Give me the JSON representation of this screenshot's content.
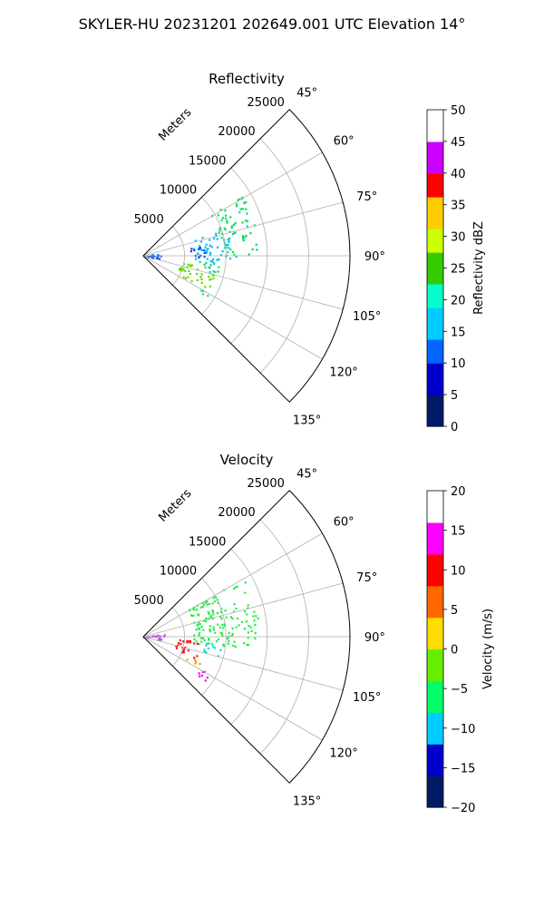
{
  "figure": {
    "title": "SKYLER-HU  20231201  202649.001 UTC Elevation 14°"
  },
  "chart_data": [
    {
      "type": "polar-sector",
      "title": "Reflectivity",
      "radial_label": "Meters",
      "radial_ticks": [
        "5000",
        "10000",
        "15000",
        "20000",
        "25000"
      ],
      "radial_values": [
        5000,
        10000,
        15000,
        20000,
        25000
      ],
      "r_max": 25000,
      "azimuth_ticks": [
        "45°",
        "60°",
        "75°",
        "90°",
        "105°",
        "120°",
        "135°"
      ],
      "azimuth_values": [
        45,
        60,
        75,
        90,
        105,
        120,
        135
      ],
      "azimuth_range": [
        45,
        135
      ],
      "grid": true,
      "colorbar": {
        "label": "Reflectivity dBZ",
        "ticks": [
          "0",
          "5",
          "10",
          "15",
          "20",
          "25",
          "30",
          "35",
          "40",
          "45",
          "50"
        ],
        "range": [
          0,
          50
        ],
        "colors": [
          "#001a66",
          "#0000cc",
          "#0066ff",
          "#00ccff",
          "#00ffcc",
          "#33cc00",
          "#ccff00",
          "#ffcc00",
          "#ff0000",
          "#cc00ff",
          "#ffffff"
        ]
      },
      "echo_regions": [
        {
          "az": [
            58,
            90
          ],
          "r": [
            9500,
            14000
          ],
          "value": 15,
          "color": "#00e060"
        },
        {
          "az": [
            72,
            96
          ],
          "r": [
            6000,
            10500
          ],
          "value": 10,
          "color": "#00b8ff"
        },
        {
          "az": [
            80,
            92
          ],
          "r": [
            5500,
            7500
          ],
          "value": 5,
          "color": "#0040ff"
        },
        {
          "az": [
            95,
            104
          ],
          "r": [
            6500,
            9500
          ],
          "value": 16,
          "color": "#00dd88"
        },
        {
          "az": [
            100,
            118
          ],
          "r": [
            4500,
            9000
          ],
          "value": 20,
          "color": "#66dd00"
        },
        {
          "az": [
            120,
            126
          ],
          "r": [
            7500,
            9500
          ],
          "value": 14,
          "color": "#00ee66"
        },
        {
          "az": [
            80,
            100
          ],
          "r": [
            0,
            2500
          ],
          "value": 5,
          "color": "#0050ff"
        }
      ]
    },
    {
      "type": "polar-sector",
      "title": "Velocity",
      "radial_label": "Meters",
      "radial_ticks": [
        "5000",
        "10000",
        "15000",
        "20000",
        "25000"
      ],
      "radial_values": [
        5000,
        10000,
        15000,
        20000,
        25000
      ],
      "r_max": 25000,
      "azimuth_ticks": [
        "45°",
        "60°",
        "75°",
        "90°",
        "105°",
        "120°",
        "135°"
      ],
      "azimuth_values": [
        45,
        60,
        75,
        90,
        105,
        120,
        135
      ],
      "azimuth_range": [
        45,
        135
      ],
      "grid": true,
      "colorbar": {
        "label": "Velocity (m/s)",
        "ticks": [
          "−20",
          "−15",
          "−10",
          "−5",
          "0",
          "5",
          "10",
          "15",
          "20"
        ],
        "range": [
          -20,
          20
        ],
        "colors": [
          "#001a66",
          "#0000cc",
          "#00ccff",
          "#00ff66",
          "#66ee00",
          "#ffdd00",
          "#ff6600",
          "#ff0000",
          "#ff00ff",
          "#ffffff"
        ]
      },
      "echo_regions": [
        {
          "az": [
            58,
            96
          ],
          "r": [
            6000,
            14000
          ],
          "value": -8,
          "color": "#22ee44"
        },
        {
          "az": [
            95,
            104
          ],
          "r": [
            6500,
            9500
          ],
          "value": -12,
          "color": "#00ddcc"
        },
        {
          "az": [
            94,
            112
          ],
          "r": [
            4000,
            7000
          ],
          "value": 10,
          "color": "#ff1010"
        },
        {
          "az": [
            112,
            118
          ],
          "r": [
            5500,
            7500
          ],
          "value": 5,
          "color": "#ff9900"
        },
        {
          "az": [
            118,
            126
          ],
          "r": [
            7500,
            9500
          ],
          "value": 15,
          "color": "#ee00ee"
        },
        {
          "az": [
            80,
            100
          ],
          "r": [
            0,
            2500
          ],
          "value": 15,
          "color": "#cc44ff"
        }
      ]
    }
  ]
}
